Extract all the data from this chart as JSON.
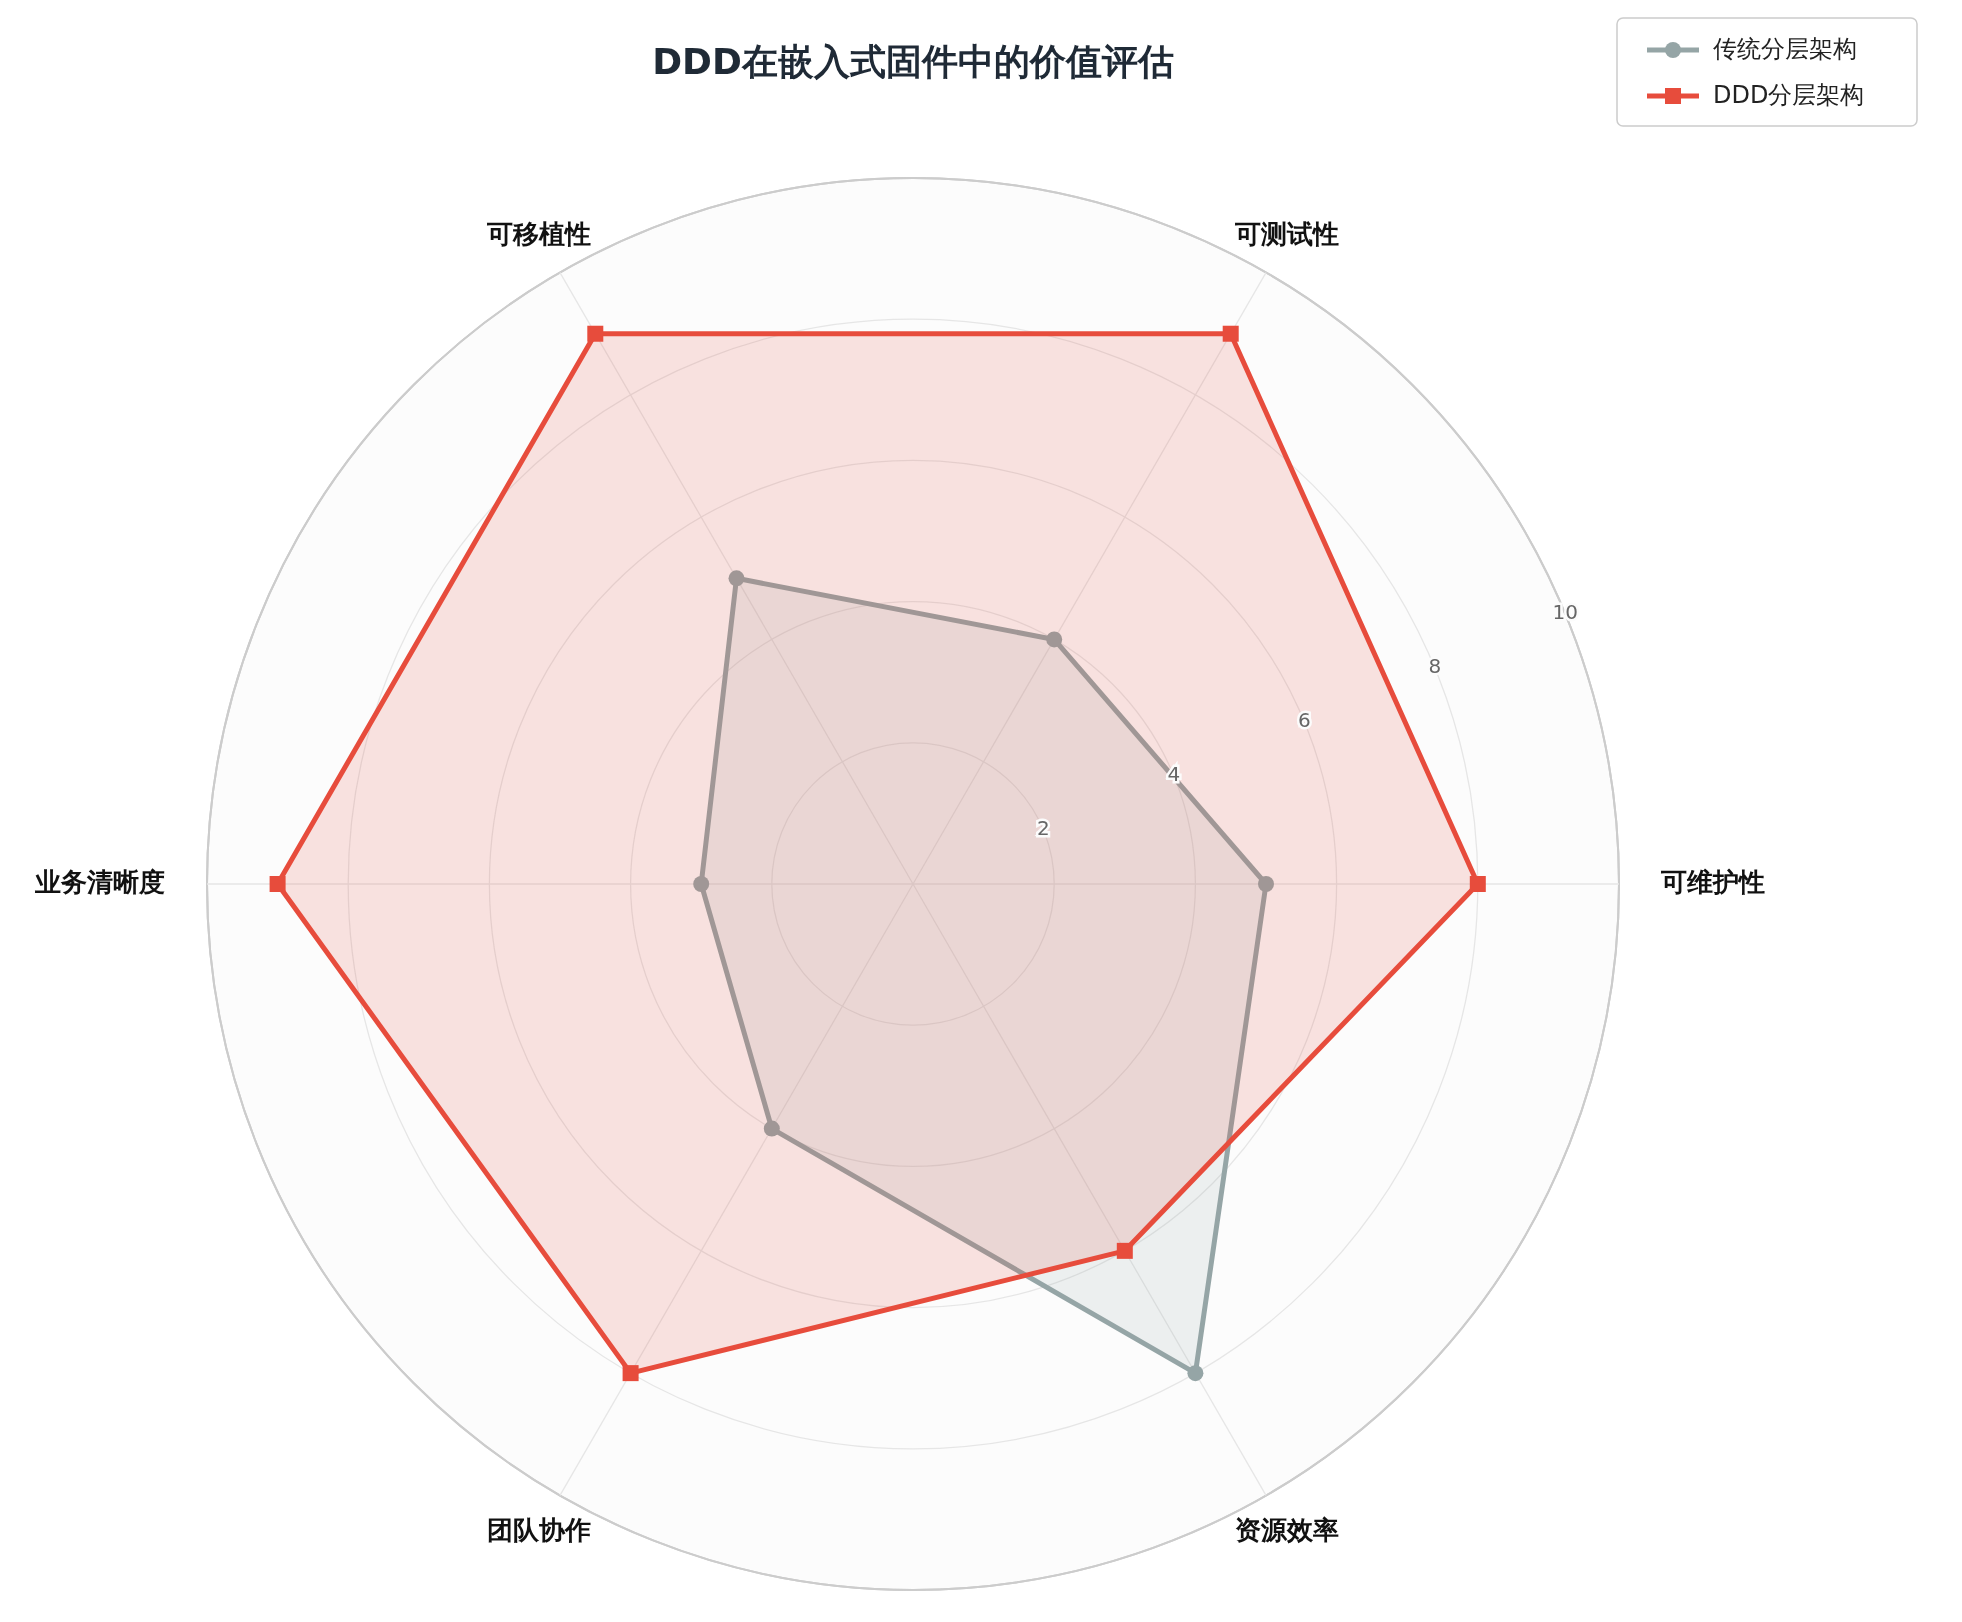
{
  "chart_data": {
    "type": "radar",
    "title": "DDD在嵌入式固件中的价值评估",
    "categories": [
      "可测试性",
      "可维护性",
      "资源效率",
      "团队协作",
      "业务清晰度",
      "可移植性"
    ],
    "series": [
      {
        "name": "传统分层架构",
        "color": "#95a5a6",
        "values": [
          4,
          5,
          8,
          4,
          3,
          5
        ],
        "marker": "circle"
      },
      {
        "name": "DDD分层架构",
        "color": "#e74c3c",
        "values": [
          9,
          8,
          6,
          8,
          9,
          9
        ],
        "marker": "square"
      }
    ],
    "ylim": [
      0,
      10
    ],
    "yticks": [
      2,
      4,
      6,
      8,
      10
    ],
    "grid": true,
    "legend": "top right"
  }
}
